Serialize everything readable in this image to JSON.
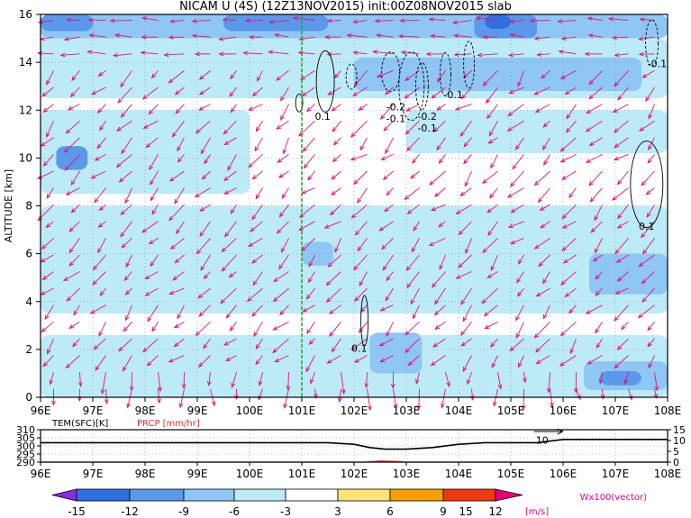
{
  "title": "NICAM U (4S) (12Z13NOV2015) init:00Z08NOV2015 slab",
  "colors": {
    "cb_neg15": "#8a2be2",
    "cb_neg12": "#2f6fe0",
    "cb_neg9": "#5a99ea",
    "cb_neg6": "#8fc6f4",
    "cb_neg3": "#bdeaf7",
    "cb_0": "#ffffff",
    "cb_3": "#fbe37a",
    "cb_6": "#f5a000",
    "cb_9": "#ee3a14",
    "cb_12": "#bf0f1c",
    "cb_15": "#e6007e",
    "vector": "#e0147a",
    "temp_line": "#000000",
    "precip_line": "#e03030",
    "marker_line": "#22aa22"
  },
  "chart_data": [
    {
      "type": "heatmap",
      "title": "NICAM U (4S) (12Z13NOV2015) init:00Z08NOV2015 slab",
      "ylabel": "ALTITUDE [km]",
      "xlabel": "",
      "x_ticks": [
        "96E",
        "97E",
        "98E",
        "99E",
        "100E",
        "101E",
        "102E",
        "103E",
        "104E",
        "105E",
        "106E",
        "107E",
        "108E"
      ],
      "y_ticks": [
        "0",
        "2",
        "4",
        "6",
        "8",
        "10",
        "12",
        "14",
        "16"
      ],
      "xlim": [
        96,
        108
      ],
      "ylim": [
        0,
        16
      ],
      "grid": true,
      "marker_line_lon": 101,
      "regions": [
        {
          "level": -6,
          "lon": [
            96.0,
            108.0
          ],
          "alt": [
            15.0,
            16.0
          ]
        },
        {
          "level": -9,
          "lon": [
            96.0,
            97.0
          ],
          "alt": [
            15.3,
            16.0
          ]
        },
        {
          "level": -9,
          "lon": [
            99.5,
            101.5
          ],
          "alt": [
            15.3,
            16.0
          ]
        },
        {
          "level": -9,
          "lon": [
            104.3,
            105.5
          ],
          "alt": [
            15.0,
            16.0
          ]
        },
        {
          "level": -12,
          "lon": [
            104.5,
            105.0
          ],
          "alt": [
            15.4,
            16.0
          ]
        },
        {
          "level": -3,
          "lon": [
            96.0,
            108.0
          ],
          "alt": [
            12.5,
            15.0
          ]
        },
        {
          "level": -6,
          "lon": [
            102.0,
            107.5
          ],
          "alt": [
            12.8,
            14.2
          ]
        },
        {
          "level": -3,
          "lon": [
            96.0,
            100.0
          ],
          "alt": [
            8.5,
            12.0
          ]
        },
        {
          "level": -9,
          "lon": [
            96.3,
            96.9
          ],
          "alt": [
            9.5,
            10.5
          ]
        },
        {
          "level": -3,
          "lon": [
            103.0,
            108.0
          ],
          "alt": [
            10.2,
            12.0
          ]
        },
        {
          "level": -3,
          "lon": [
            96.0,
            108.0
          ],
          "alt": [
            3.5,
            8.0
          ]
        },
        {
          "level": -6,
          "lon": [
            101.0,
            101.6
          ],
          "alt": [
            5.5,
            6.5
          ]
        },
        {
          "level": -6,
          "lon": [
            106.5,
            108.0
          ],
          "alt": [
            4.3,
            6.0
          ]
        },
        {
          "level": -3,
          "lon": [
            96.0,
            108.0
          ],
          "alt": [
            0.0,
            2.6
          ]
        },
        {
          "level": -6,
          "lon": [
            102.3,
            103.3
          ],
          "alt": [
            1.0,
            2.7
          ]
        },
        {
          "level": -6,
          "lon": [
            106.4,
            108.0
          ],
          "alt": [
            0.3,
            1.5
          ]
        },
        {
          "level": -9,
          "lon": [
            106.7,
            107.5
          ],
          "alt": [
            0.5,
            1.1
          ]
        }
      ],
      "contour_labels": [
        {
          "text": "-0.1",
          "lon": 107.8,
          "alt": 13.8
        },
        {
          "text": "-0.1",
          "lon": 103.9,
          "alt": 12.5
        },
        {
          "text": "-0.2",
          "lon": 102.8,
          "alt": 12.0
        },
        {
          "text": "-0.1",
          "lon": 102.8,
          "alt": 11.5
        },
        {
          "text": "-0.2",
          "lon": 103.4,
          "alt": 11.6
        },
        {
          "text": "-0.1",
          "lon": 103.4,
          "alt": 11.1
        },
        {
          "text": "0.1",
          "lon": 101.4,
          "alt": 11.6
        },
        {
          "text": "0.1",
          "lon": 107.6,
          "alt": 7.0
        },
        {
          "text": "0.1",
          "lon": 102.1,
          "alt": 1.9
        }
      ],
      "vector_grid": {
        "lon_step": 0.5,
        "alt_step": 0.7
      }
    },
    {
      "type": "line",
      "title": "",
      "series": [
        {
          "name": "TEM(SFC)[K]",
          "x": [
            96,
            97,
            98,
            99,
            100,
            101,
            101.5,
            102,
            102.3,
            102.6,
            103,
            103.5,
            104,
            104.5,
            105,
            105.5,
            106,
            106.5,
            107,
            108
          ],
          "values": [
            302,
            302,
            302,
            302,
            302,
            302,
            302,
            301,
            299,
            298,
            298,
            299,
            301,
            302,
            302,
            302,
            304,
            304,
            304,
            304
          ]
        },
        {
          "name": "PRCP [mm/hr]",
          "x": [
            96,
            102.2,
            102.5,
            102.8,
            103,
            108
          ],
          "values": [
            0,
            0,
            0.5,
            0.3,
            0,
            0
          ]
        }
      ],
      "left_axis": {
        "label": "TEM(SFC)[K]",
        "ticks": [
          "310",
          "305",
          "300",
          "295",
          "290"
        ],
        "ylim": [
          290,
          310
        ]
      },
      "right_axis": {
        "label": "PRCP [mm/hr]",
        "ticks": [
          "15",
          "10",
          "5",
          "0"
        ],
        "ylim": [
          0,
          15
        ]
      },
      "annotation": "10",
      "x_ticks": [
        "96E",
        "97E",
        "98E",
        "99E",
        "100E",
        "101E",
        "102E",
        "103E",
        "104E",
        "105E",
        "106E",
        "107E",
        "108E"
      ],
      "xlim": [
        96,
        108
      ]
    }
  ],
  "colorbar": {
    "ticks": [
      "-15",
      "-12",
      "-9",
      "-6",
      "-3",
      "3",
      "6",
      "9",
      "12",
      "15"
    ],
    "unit": "[m/s]",
    "vector_label": "Wx100(vector)"
  }
}
